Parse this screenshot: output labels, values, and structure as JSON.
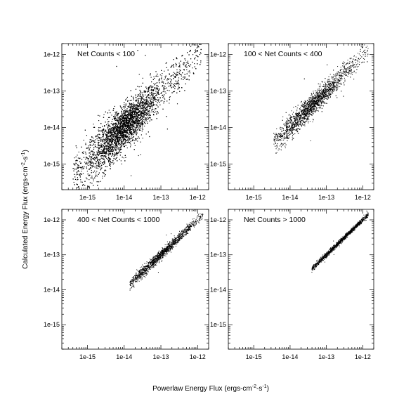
{
  "figure": {
    "xlabel": {
      "main": "Powerlaw Energy Flux (ergs-cm",
      "exp1": "-2",
      "mid": "-s",
      "exp2": "-1",
      "end": ")"
    },
    "ylabel": {
      "main": "Calculated Energy Flux (ergs-cm",
      "exp1": "-2",
      "mid": "-s",
      "exp2": "-1",
      "end": ")"
    }
  },
  "chart_data": [
    {
      "type": "scatter",
      "label": "Net Counts < 100",
      "xscale": "log",
      "yscale": "log",
      "xlim": [
        2e-16,
        2e-12
      ],
      "ylim": [
        2e-16,
        2e-12
      ],
      "xticks": [
        "1e-15",
        "1e-14",
        "1e-13",
        "1e-12"
      ],
      "yticks": [
        "1e-15",
        "1e-14",
        "1e-13",
        "1e-12"
      ],
      "x_range": [
        4e-16,
        1.5e-12
      ],
      "y_range": [
        3.5e-16,
        1.5e-12
      ],
      "density": "very dense, broad band along 1:1 line"
    },
    {
      "type": "scatter",
      "label": "100 < Net Counts < 400",
      "xscale": "log",
      "yscale": "log",
      "xlim": [
        2e-16,
        2e-12
      ],
      "ylim": [
        2e-16,
        2e-12
      ],
      "xticks": [
        "1e-15",
        "1e-14",
        "1e-13",
        "1e-12"
      ],
      "yticks": [
        "1e-15",
        "1e-14",
        "1e-13",
        "1e-12"
      ],
      "x_range": [
        3e-15,
        1.5e-12
      ],
      "y_range": [
        2.5e-15,
        1.5e-12
      ],
      "density": "dense, moderate band along 1:1 line"
    },
    {
      "type": "scatter",
      "label": "400 < Net Counts < 1000",
      "xscale": "log",
      "yscale": "log",
      "xlim": [
        2e-16,
        2e-12
      ],
      "ylim": [
        2e-16,
        2e-12
      ],
      "xticks": [
        "1e-15",
        "1e-14",
        "1e-13",
        "1e-12"
      ],
      "yticks": [
        "1e-15",
        "1e-14",
        "1e-13",
        "1e-12"
      ],
      "x_range": [
        1.4e-14,
        1.5e-12
      ],
      "y_range": [
        1.5e-14,
        1.5e-12
      ],
      "density": "narrow band along 1:1 line"
    },
    {
      "type": "scatter",
      "label": "Net Counts > 1000",
      "xscale": "log",
      "yscale": "log",
      "xlim": [
        2e-16,
        2e-12
      ],
      "ylim": [
        2e-16,
        2e-12
      ],
      "xticks": [
        "1e-15",
        "1e-14",
        "1e-13",
        "1e-12"
      ],
      "yticks": [
        "1e-15",
        "1e-14",
        "1e-13",
        "1e-12"
      ],
      "x_range": [
        4e-14,
        1.5e-12
      ],
      "y_range": [
        4e-14,
        1.5e-12
      ],
      "density": "very tight line along 1:1"
    }
  ]
}
